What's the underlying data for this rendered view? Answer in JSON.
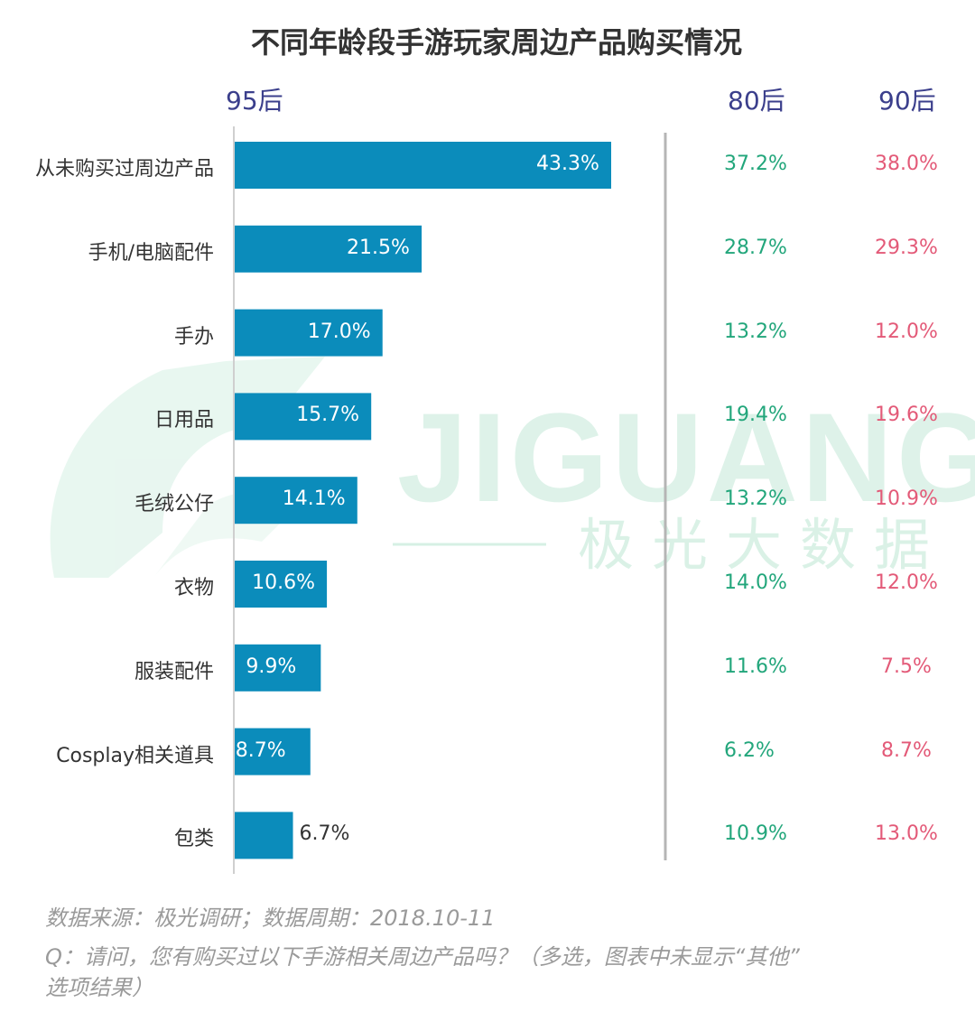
{
  "title": "不同年龄段手游玩家周边产品购买情况",
  "columns": {
    "primary": "95后",
    "second": "80后",
    "third": "90后"
  },
  "colors": {
    "bar": "#0b8cbb",
    "bar_label_inside": "#ffffff",
    "bar_label_outside": "#333333",
    "col80": "#22a67b",
    "col90": "#e35a78",
    "header": "#3b3f8c"
  },
  "chart_data": {
    "type": "bar",
    "orientation": "horizontal",
    "title": "不同年龄段手游玩家周边产品购买情况",
    "unit": "%",
    "categories": [
      "从未购买过周边产品",
      "手机/电脑配件",
      "手办",
      "日用品",
      "毛绒公仔",
      "衣物",
      "服装配件",
      "Cosplay相关道具",
      "包类"
    ],
    "series": [
      {
        "name": "95后",
        "values": [
          43.3,
          21.5,
          17.0,
          15.7,
          14.1,
          10.6,
          9.9,
          8.7,
          6.7
        ],
        "labels": [
          "43.3%",
          "21.5%",
          "17.0%",
          "15.7%",
          "14.1%",
          "10.6%",
          "9.9%",
          "8.7%",
          "6.7%"
        ]
      },
      {
        "name": "80后",
        "values": [
          37.2,
          28.7,
          13.2,
          19.4,
          13.2,
          14.0,
          11.6,
          6.2,
          10.9
        ],
        "labels": [
          "37.2%",
          "28.7%",
          "13.2%",
          "19.4%",
          "13.2%",
          "14.0%",
          "11.6%",
          "6.2%",
          "10.9%"
        ]
      },
      {
        "name": "90后",
        "values": [
          38.0,
          29.3,
          12.0,
          19.6,
          10.9,
          12.0,
          7.5,
          8.7,
          13.0
        ],
        "labels": [
          "38.0%",
          "29.3%",
          "12.0%",
          "19.6%",
          "10.9%",
          "12.0%",
          "7.5%",
          "8.7%",
          "13.0%"
        ]
      }
    ]
  },
  "watermark": {
    "brand": "JIGUANG",
    "sub": "极光大数据"
  },
  "footnotes": {
    "source": "数据来源：极光调研；数据周期：2018.10-11",
    "question_line1": "Q：请问，您有购买过以下手游相关周边产品吗？（多选，图表中未显示“其他”",
    "question_line2": "选项结果）"
  }
}
